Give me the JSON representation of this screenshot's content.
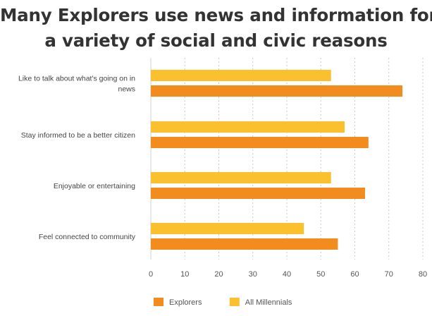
{
  "chart_data": {
    "type": "bar",
    "orientation": "horizontal",
    "title_lines": [
      "Many Explorers use news and information for",
      "a variety of social and civic reasons"
    ],
    "categories": [
      "Like to talk about what's going on in news",
      "Stay informed to be a better citizen",
      "Enjoyable or entertaining",
      "Feel connected to community"
    ],
    "category_label_lines": [
      [
        "Like to talk about what's going on in",
        "news"
      ],
      [
        "Stay informed to be a better citizen"
      ],
      [
        "Enjoyable or entertaining"
      ],
      [
        "Feel connected to community"
      ]
    ],
    "series": [
      {
        "name": "All Millennials",
        "color": "#FBC02D",
        "values": [
          53,
          57,
          53,
          45
        ]
      },
      {
        "name": "Explorers",
        "color": "#F28C1E",
        "values": [
          74,
          64,
          63,
          55
        ]
      }
    ],
    "legend_order": [
      "Explorers",
      "All Millennials"
    ],
    "xlim": [
      0,
      80
    ],
    "xticks": [
      0,
      10,
      20,
      30,
      40,
      50,
      60,
      70,
      80
    ],
    "grid": "vertical-dotted",
    "legend_position": "bottom-left"
  }
}
